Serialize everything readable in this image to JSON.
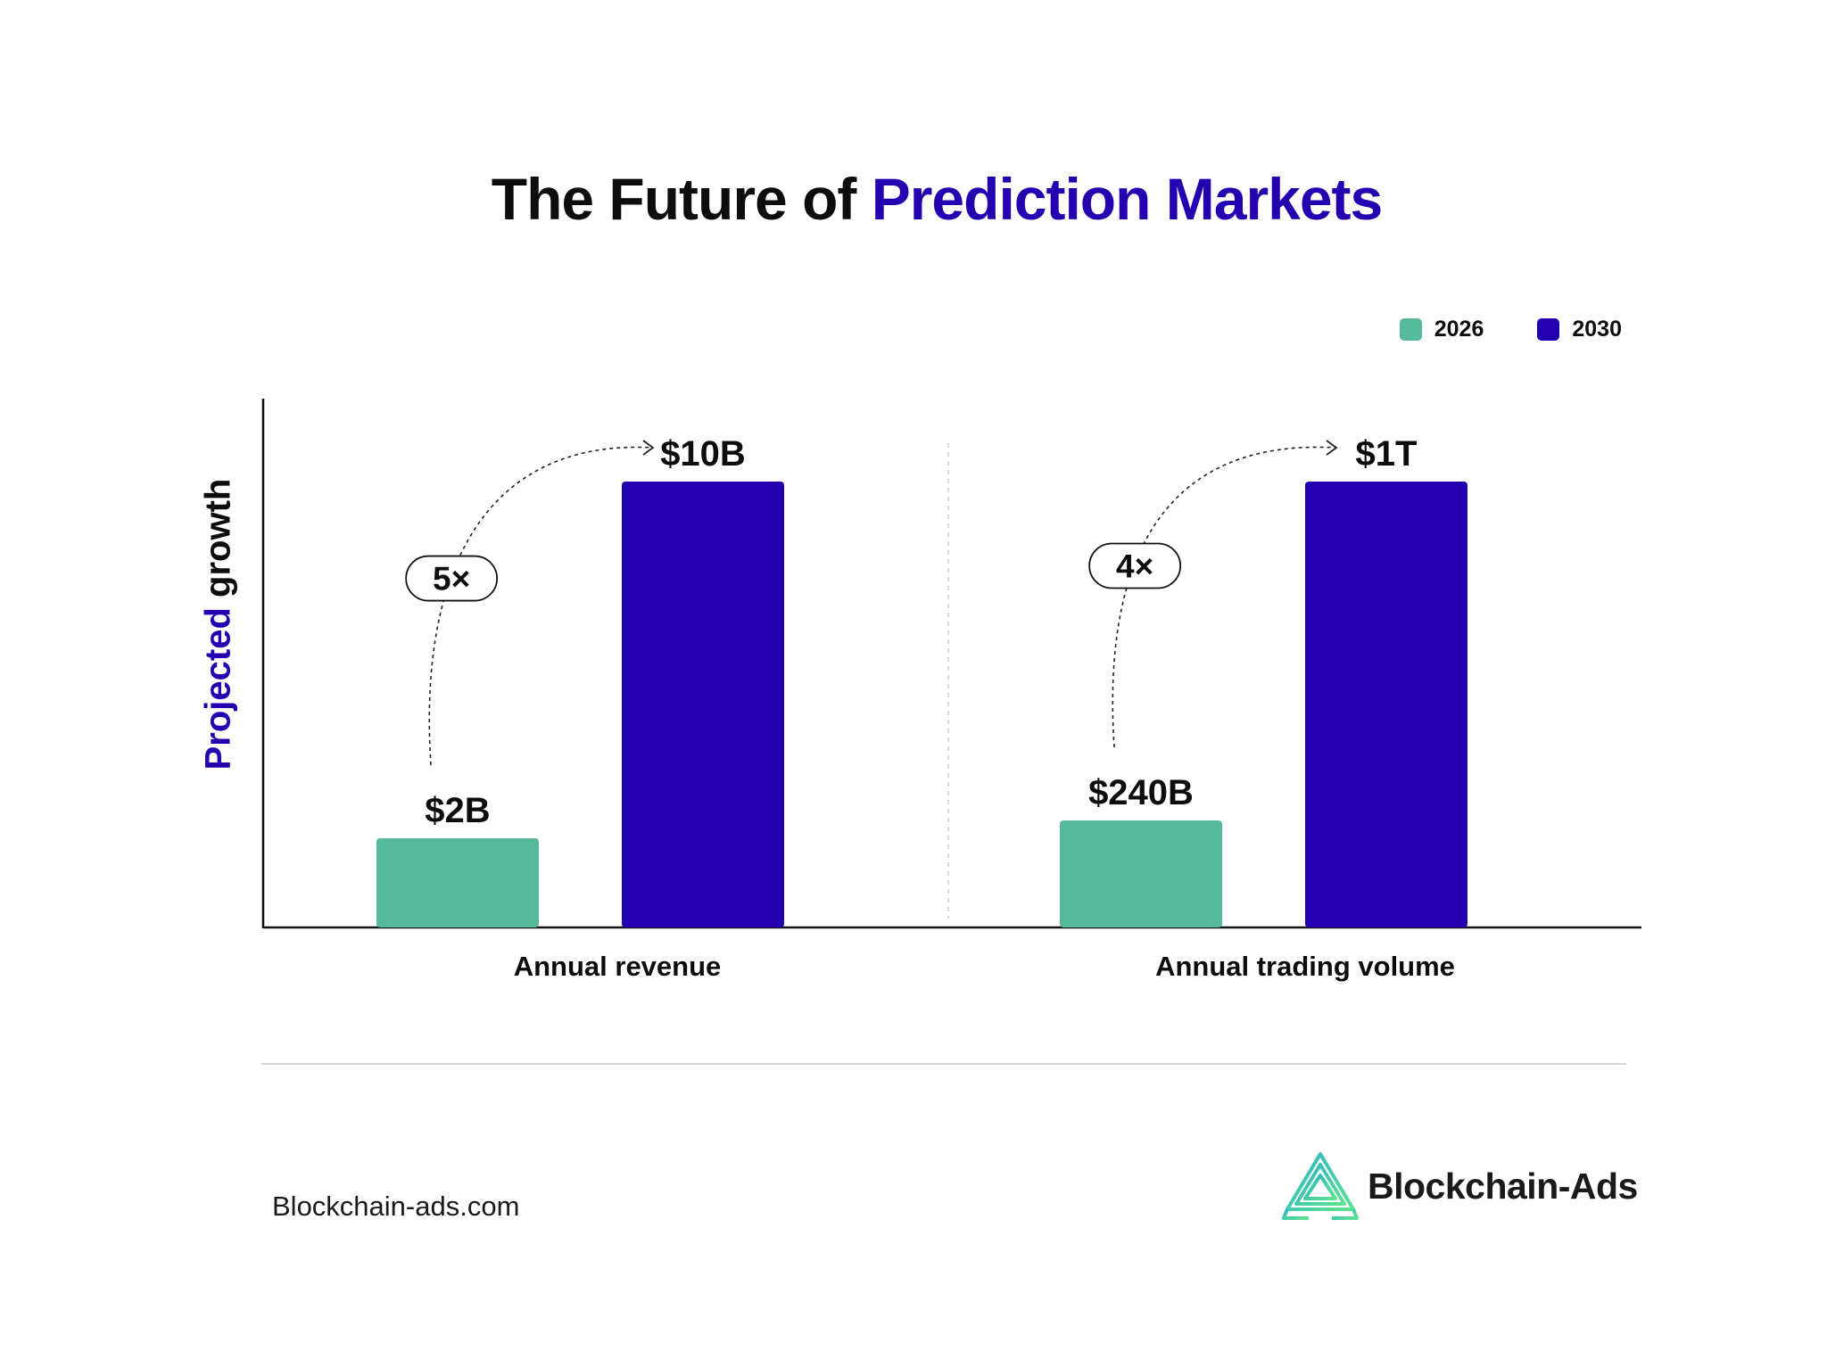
{
  "title": {
    "prefix": "The Future of",
    "highlight": "Prediction Markets"
  },
  "chart_data": {
    "type": "bar",
    "ylabel": {
      "highlight": "Projected",
      "rest": "growth"
    },
    "legend_placement": "top-right",
    "grid": false,
    "categories": [
      "Annual revenue",
      "Annual trading volume"
    ],
    "series": [
      {
        "name": "2026",
        "color": "#57b99b"
      },
      {
        "name": "2030",
        "color": "#2200b0"
      }
    ],
    "groups": [
      {
        "category": "Annual revenue",
        "values": [
          {
            "series": "2026",
            "label": "$2B",
            "value": 2,
            "unit": "B",
            "relative_height": 0.2
          },
          {
            "series": "2030",
            "label": "$10B",
            "value": 10,
            "unit": "B",
            "relative_height": 1.0
          }
        ],
        "multiplier": "5×"
      },
      {
        "category": "Annual trading volume",
        "values": [
          {
            "series": "2026",
            "label": "$240B",
            "value": 240,
            "unit": "B",
            "relative_height": 0.24
          },
          {
            "series": "2030",
            "label": "$1T",
            "value": 1000,
            "unit": "B",
            "relative_height": 1.0
          }
        ],
        "multiplier": "4×"
      }
    ]
  },
  "colors": {
    "accent": "#2400b0",
    "teal": "#57b99b",
    "text": "#0d0d0d"
  },
  "footer": {
    "url": "Blockchain-ads.com",
    "brand": "Blockchain-Ads",
    "logo_icon": "blockchain-ads-logo-icon"
  }
}
